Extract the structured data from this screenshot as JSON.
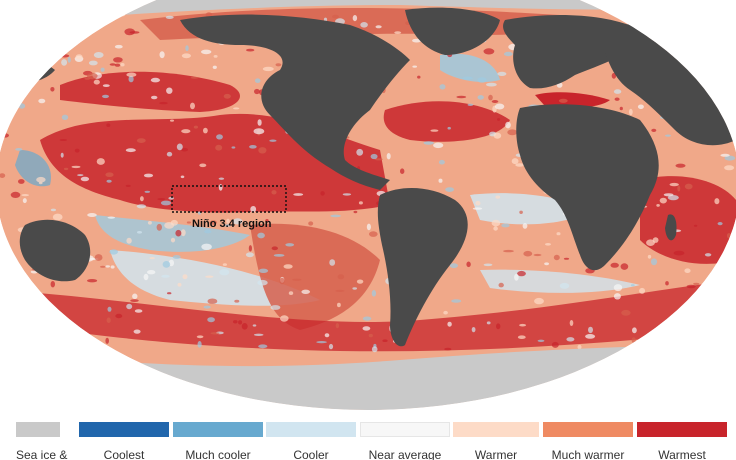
{
  "map": {
    "region_label": "Niño 3.4 region",
    "colors": {
      "ocean_base": "#f0a889",
      "land": "#4a4a4a",
      "sea_ice": "#c9c9c9",
      "border": "#ffffff"
    }
  },
  "legend": {
    "items": [
      {
        "label": "Sea ice &",
        "color": "#c9c9c9"
      },
      {
        "label": "Coolest",
        "color": "#2166ac"
      },
      {
        "label": "Much cooler",
        "color": "#67a9cf"
      },
      {
        "label": "Cooler",
        "color": "#d1e5f0"
      },
      {
        "label": "Near average",
        "color": "#f7f7f7"
      },
      {
        "label": "Warmer",
        "color": "#fddbc7"
      },
      {
        "label": "Much warmer",
        "color": "#ef8a62"
      },
      {
        "label": "Warmest",
        "color": "#c8242b"
      }
    ]
  }
}
